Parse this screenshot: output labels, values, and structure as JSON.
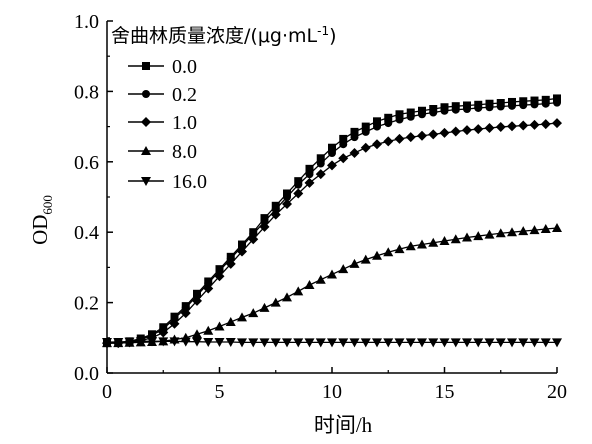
{
  "chart_data": {
    "type": "line",
    "title": "",
    "legend": {
      "title": "舍曲林质量浓度/(μg·mL",
      "title_sup": "-1",
      "title_end": ")",
      "placement": "top-left"
    },
    "xlabel": "时间/h",
    "ylabel_main": "OD",
    "ylabel_sub": "600",
    "xlim": [
      0,
      20
    ],
    "ylim": [
      0,
      1.0
    ],
    "xticks": [
      "0",
      "5",
      "10",
      "15",
      "20"
    ],
    "yticks": [
      "0.0",
      "0.2",
      "0.4",
      "0.6",
      "0.8",
      "1.0"
    ],
    "grid": false,
    "x": [
      0,
      0.5,
      1,
      1.5,
      2,
      2.5,
      3,
      3.5,
      4,
      4.5,
      5,
      5.5,
      6,
      6.5,
      7,
      7.5,
      8,
      8.5,
      9,
      9.5,
      10,
      10.5,
      11,
      11.5,
      12,
      12.5,
      13,
      13.5,
      14,
      14.5,
      15,
      15.5,
      16,
      16.5,
      17,
      17.5,
      18,
      18.5,
      19,
      19.5,
      20
    ],
    "series": [
      {
        "name": "0.0",
        "marker": "square",
        "values": [
          0.085,
          0.087,
          0.09,
          0.098,
          0.11,
          0.13,
          0.16,
          0.19,
          0.225,
          0.26,
          0.295,
          0.33,
          0.365,
          0.4,
          0.44,
          0.475,
          0.51,
          0.545,
          0.58,
          0.61,
          0.64,
          0.665,
          0.685,
          0.7,
          0.715,
          0.725,
          0.735,
          0.74,
          0.745,
          0.75,
          0.755,
          0.758,
          0.76,
          0.762,
          0.765,
          0.767,
          0.77,
          0.772,
          0.774,
          0.776,
          0.78
        ]
      },
      {
        "name": "0.2",
        "marker": "circle",
        "values": [
          0.085,
          0.086,
          0.088,
          0.095,
          0.107,
          0.125,
          0.155,
          0.185,
          0.22,
          0.255,
          0.29,
          0.325,
          0.36,
          0.395,
          0.43,
          0.465,
          0.5,
          0.535,
          0.565,
          0.595,
          0.625,
          0.65,
          0.67,
          0.685,
          0.7,
          0.71,
          0.72,
          0.728,
          0.735,
          0.74,
          0.745,
          0.748,
          0.75,
          0.753,
          0.755,
          0.757,
          0.759,
          0.761,
          0.763,
          0.765,
          0.768
        ]
      },
      {
        "name": "1.0",
        "marker": "diamond",
        "values": [
          0.085,
          0.085,
          0.087,
          0.092,
          0.1,
          0.115,
          0.14,
          0.17,
          0.205,
          0.24,
          0.275,
          0.31,
          0.345,
          0.38,
          0.415,
          0.45,
          0.48,
          0.51,
          0.54,
          0.565,
          0.59,
          0.61,
          0.625,
          0.64,
          0.65,
          0.658,
          0.665,
          0.67,
          0.674,
          0.678,
          0.682,
          0.686,
          0.69,
          0.693,
          0.696,
          0.699,
          0.701,
          0.703,
          0.705,
          0.707,
          0.71
        ]
      },
      {
        "name": "8.0",
        "marker": "triangle-up",
        "values": [
          0.085,
          0.085,
          0.086,
          0.087,
          0.088,
          0.09,
          0.095,
          0.1,
          0.11,
          0.12,
          0.132,
          0.145,
          0.158,
          0.17,
          0.185,
          0.2,
          0.215,
          0.232,
          0.25,
          0.265,
          0.28,
          0.295,
          0.31,
          0.322,
          0.333,
          0.343,
          0.352,
          0.36,
          0.365,
          0.37,
          0.375,
          0.38,
          0.385,
          0.389,
          0.393,
          0.397,
          0.4,
          0.403,
          0.406,
          0.409,
          0.412
        ]
      },
      {
        "name": "16.0",
        "marker": "triangle-down",
        "values": [
          0.088,
          0.088,
          0.089,
          0.09,
          0.09,
          0.09,
          0.09,
          0.089,
          0.089,
          0.088,
          0.088,
          0.088,
          0.087,
          0.087,
          0.087,
          0.087,
          0.087,
          0.087,
          0.087,
          0.087,
          0.087,
          0.087,
          0.087,
          0.087,
          0.087,
          0.087,
          0.087,
          0.087,
          0.087,
          0.087,
          0.087,
          0.087,
          0.087,
          0.087,
          0.087,
          0.087,
          0.087,
          0.087,
          0.087,
          0.087,
          0.087
        ]
      }
    ]
  }
}
